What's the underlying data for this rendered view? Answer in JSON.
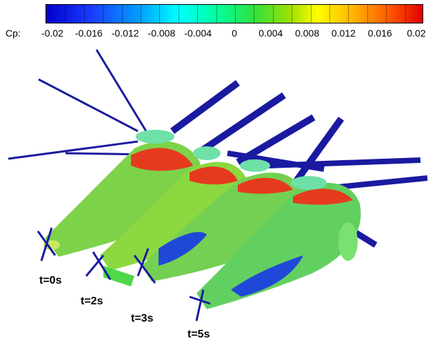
{
  "colorbar": {
    "variable": "Cp:",
    "ticks": [
      "-0.02",
      "-0.016",
      "-0.012",
      "-0.008",
      "-0.004",
      "0",
      "0.004",
      "0.008",
      "0.012",
      "0.016",
      "0.02"
    ],
    "range": [
      -0.02,
      0.02
    ],
    "colors": [
      "#0000cc",
      "#00ffff",
      "#30e040",
      "#ffff00",
      "#e00000"
    ]
  },
  "time_labels": [
    "t=0s",
    "t=2s",
    "t=3s",
    "t=5s"
  ],
  "colors": {
    "blade": "#1a1aa0",
    "surface_green": "#5ed25a",
    "surface_red": "#e63a1e",
    "surface_blue": "#2048d8"
  }
}
